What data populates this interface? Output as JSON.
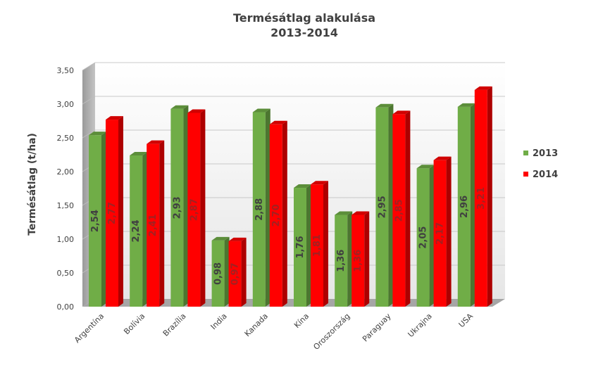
{
  "chart_data": {
    "type": "bar",
    "title": "Termésátlag alakulása",
    "subtitle": "2013-2014",
    "xlabel": "",
    "ylabel": "Termésátlag (t/ha)",
    "ylim": [
      0,
      3.5
    ],
    "yticks": [
      "0,00",
      "0,50",
      "1,00",
      "1,50",
      "2,00",
      "2,50",
      "3,00",
      "3,50"
    ],
    "categories": [
      "Argentína",
      "Bolívia",
      "Brazília",
      "India",
      "Kanada",
      "Kína",
      "Oroszország",
      "Paraguay",
      "Ukrajna",
      "USA"
    ],
    "series": [
      {
        "name": "2013",
        "color": "#70AD47",
        "values": [
          2.54,
          2.24,
          2.93,
          0.98,
          2.88,
          1.76,
          1.36,
          2.95,
          2.05,
          2.96
        ],
        "labels": [
          "2,54",
          "2,24",
          "2,93",
          "0,98",
          "2,88",
          "1,76",
          "1,36",
          "2,95",
          "2,05",
          "2,96"
        ]
      },
      {
        "name": "2014",
        "color": "#FF0000",
        "values": [
          2.77,
          2.41,
          2.87,
          0.97,
          2.7,
          1.81,
          1.36,
          2.85,
          2.17,
          3.21
        ],
        "labels": [
          "2,77",
          "2,41",
          "2,87",
          "0,97",
          "2,70",
          "1,81",
          "1,36",
          "2,85",
          "2,17",
          "3,21"
        ]
      }
    ],
    "grid": true,
    "legend": "right"
  }
}
